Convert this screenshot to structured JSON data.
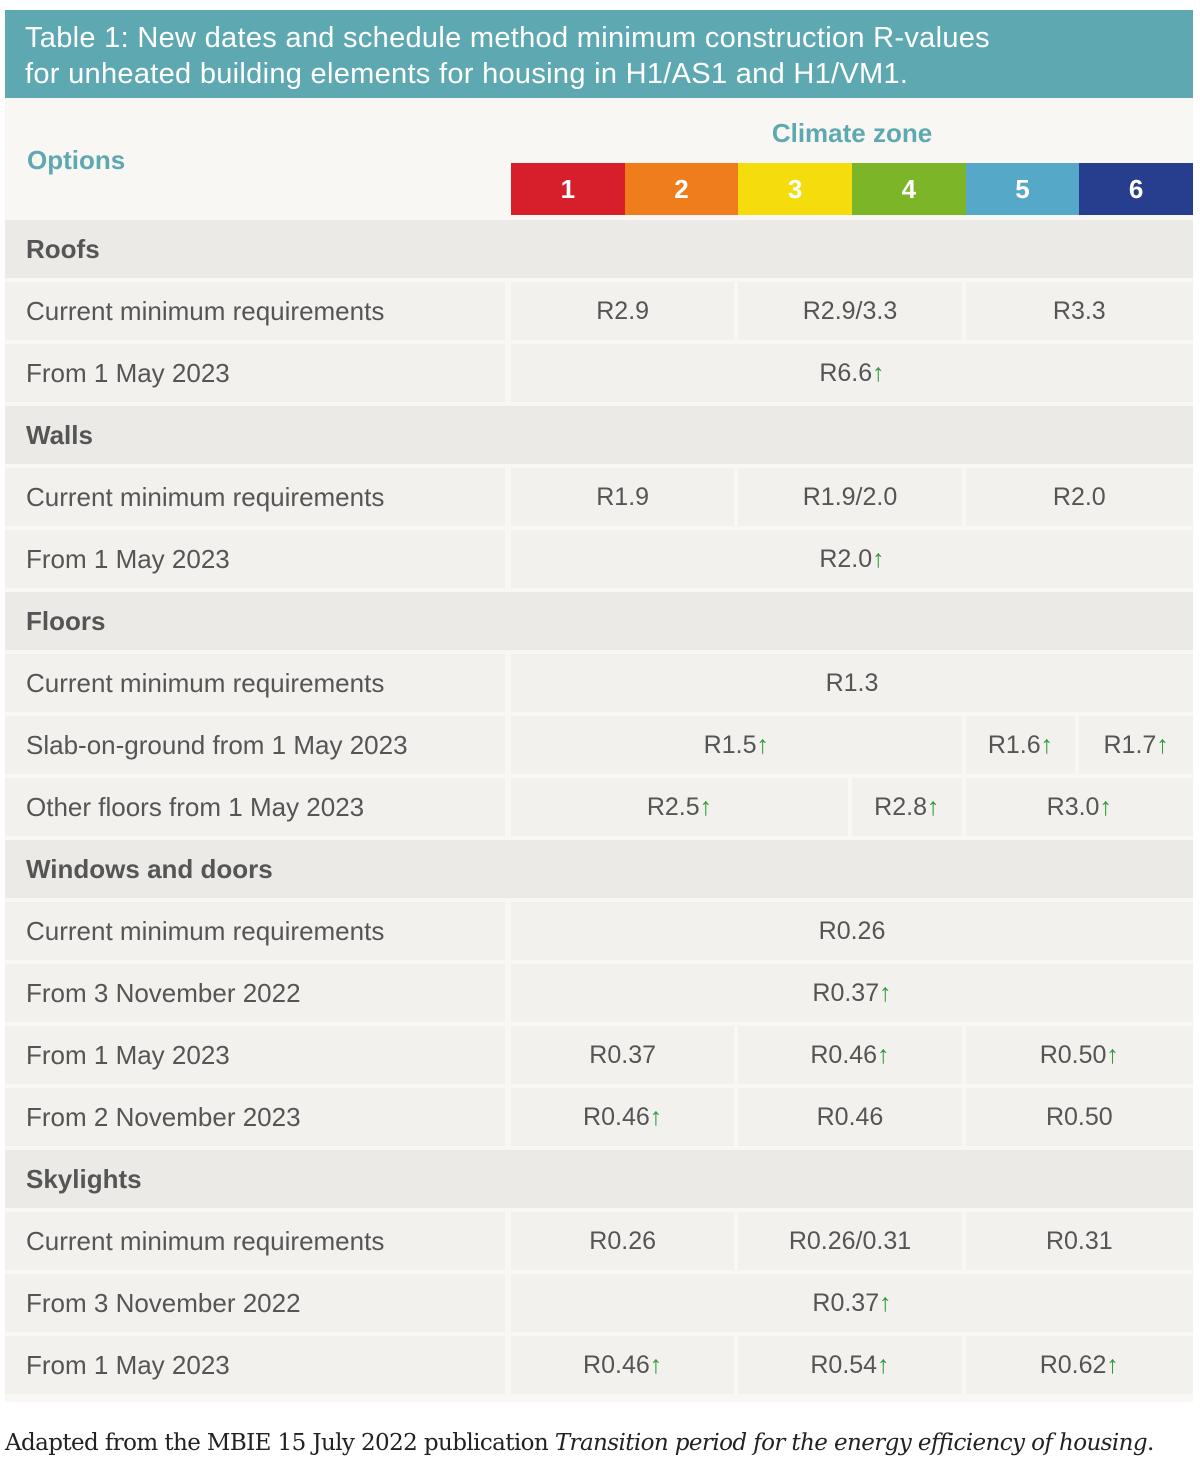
{
  "title_lines": [
    "Table 1: New dates and schedule method minimum construction R-values",
    "for unheated building elements for housing in H1/AS1 and H1/VM1."
  ],
  "header": {
    "options": "Options",
    "climate_zone": "Climate zone",
    "zones": [
      {
        "label": "1",
        "color": "#d71f2b"
      },
      {
        "label": "2",
        "color": "#f07d1b"
      },
      {
        "label": "3",
        "color": "#f5dc0c"
      },
      {
        "label": "4",
        "color": "#7cb527"
      },
      {
        "label": "5",
        "color": "#56a8c9"
      },
      {
        "label": "6",
        "color": "#273e8e"
      }
    ]
  },
  "sections": [
    {
      "name": "Roofs",
      "rows": [
        {
          "label": "Current minimum requirements",
          "cells": [
            {
              "text": "R2.9",
              "span": 2
            },
            {
              "text": "R2.9/3.3",
              "span": 2
            },
            {
              "text": "R3.3",
              "span": 2
            }
          ]
        },
        {
          "label": "From 1 May 2023",
          "cells": [
            {
              "text": "R6.6",
              "change": "↑",
              "span": 6
            }
          ]
        }
      ]
    },
    {
      "name": "Walls",
      "rows": [
        {
          "label": "Current minimum requirements",
          "cells": [
            {
              "text": "R1.9",
              "span": 2
            },
            {
              "text": "R1.9/2.0",
              "span": 2
            },
            {
              "text": "R2.0",
              "span": 2
            }
          ]
        },
        {
          "label": "From 1 May 2023",
          "cells": [
            {
              "text": "R2.0",
              "change": "↑",
              "span": 6
            }
          ]
        }
      ]
    },
    {
      "name": "Floors",
      "rows": [
        {
          "label": "Current minimum requirements",
          "cells": [
            {
              "text": "R1.3",
              "span": 6
            }
          ]
        },
        {
          "label": "Slab-on-ground from 1 May 2023",
          "cells": [
            {
              "text": "R1.5",
              "change": "↑",
              "span": 4
            },
            {
              "text": "R1.6",
              "change": "↑",
              "span": 1
            },
            {
              "text": "R1.7",
              "change": "↑",
              "span": 1
            }
          ]
        },
        {
          "label": "Other floors from 1 May 2023",
          "cells": [
            {
              "text": "R2.5",
              "change": "↑",
              "span": 3
            },
            {
              "text": "R2.8",
              "change": "↑",
              "span": 1
            },
            {
              "text": "R3.0",
              "change": "↑",
              "span": 2
            }
          ]
        }
      ]
    },
    {
      "name": "Windows and doors",
      "rows": [
        {
          "label": "Current minimum requirements",
          "cells": [
            {
              "text": "R0.26",
              "span": 6
            }
          ]
        },
        {
          "label": "From 3 November 2022",
          "cells": [
            {
              "text": "R0.37",
              "change": "↑",
              "span": 6
            }
          ]
        },
        {
          "label": "From 1 May 2023",
          "cells": [
            {
              "text": "R0.37",
              "span": 2
            },
            {
              "text": "R0.46",
              "change": "↑",
              "span": 2
            },
            {
              "text": "R0.50",
              "change": "↑",
              "span": 2
            }
          ]
        },
        {
          "label": "From 2 November 2023",
          "cells": [
            {
              "text": "R0.46",
              "change": "↑",
              "span": 2
            },
            {
              "text": "R0.46",
              "span": 2
            },
            {
              "text": "R0.50",
              "span": 2
            }
          ]
        }
      ]
    },
    {
      "name": "Skylights",
      "rows": [
        {
          "label": "Current minimum requirements",
          "cells": [
            {
              "text": "R0.26",
              "span": 2
            },
            {
              "text": "R0.26/0.31",
              "span": 2
            },
            {
              "text": "R0.31",
              "span": 2
            }
          ]
        },
        {
          "label": "From 3 November 2022",
          "cells": [
            {
              "text": "R0.37",
              "change": "↑",
              "span": 6
            }
          ]
        },
        {
          "label": "From 1 May 2023",
          "cells": [
            {
              "text": "R0.46",
              "change": "↑",
              "span": 2
            },
            {
              "text": "R0.54",
              "change": "↑",
              "span": 2
            },
            {
              "text": "R0.62",
              "change": "↑",
              "span": 2
            }
          ]
        }
      ]
    }
  ],
  "caption": {
    "text": "Adapted from the MBIE 15 July 2022 publication ",
    "title": "Transition period for the energy efficiency of housing",
    "end": "."
  }
}
